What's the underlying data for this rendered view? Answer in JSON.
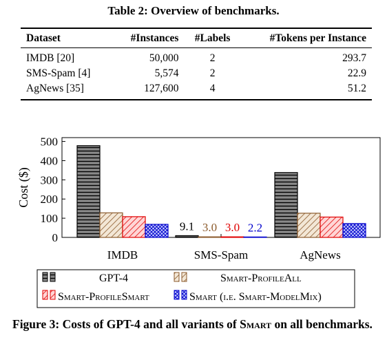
{
  "table": {
    "caption": "Table 2: Overview of benchmarks.",
    "headers": [
      "Dataset",
      "#Instances",
      "#Labels",
      "#Tokens per Instance"
    ],
    "rows": [
      [
        "IMDB [20]",
        "50,000",
        "2",
        "293.7"
      ],
      [
        "SMS-Spam [4]",
        "5,574",
        "2",
        "22.9"
      ],
      [
        "AgNews [35]",
        "127,600",
        "4",
        "51.2"
      ]
    ]
  },
  "chart_data": {
    "type": "bar",
    "ylabel": "Cost ($)",
    "ylim": [
      0,
      520
    ],
    "yticks": [
      "0",
      "100",
      "200",
      "300",
      "400",
      "500"
    ],
    "categories": [
      "IMDB",
      "SMS-Spam",
      "AgNews"
    ],
    "series": [
      {
        "name": "GPT-4",
        "values": [
          478,
          9.1,
          338
        ],
        "color": "#000000",
        "pattern": "horizontal-lines",
        "fill": "#888888"
      },
      {
        "name": "Smart-ProfileAll",
        "values": [
          128,
          3.0,
          126
        ],
        "color": "#8b5a2b",
        "pattern": "diagonal-lines",
        "fill": "#f3e7d6"
      },
      {
        "name": "Smart-ProfileSmart",
        "values": [
          108,
          3.0,
          106
        ],
        "color": "#e00000",
        "pattern": "diagonal-lines",
        "fill": "#ffd6d6"
      },
      {
        "name": "Smart (i.e. Smart-ModelMix)",
        "values": [
          68,
          2.2,
          72
        ],
        "color": "#0000cc",
        "pattern": "crosshatch",
        "fill": "#c8d0ff"
      }
    ],
    "value_labels": {
      "category": "SMS-Spam",
      "labels": [
        "9.1",
        "3.0",
        "3.0",
        "2.2"
      ],
      "colors": [
        "#000000",
        "#8b5a2b",
        "#e00000",
        "#0000cc"
      ]
    },
    "grid": false,
    "legend_position": "bottom"
  },
  "figure": {
    "caption_prefix": "Figure 3: Costs of GPT-4 and all variants of ",
    "caption_smart": "Smart",
    "caption_suffix": " on all benchmarks."
  }
}
